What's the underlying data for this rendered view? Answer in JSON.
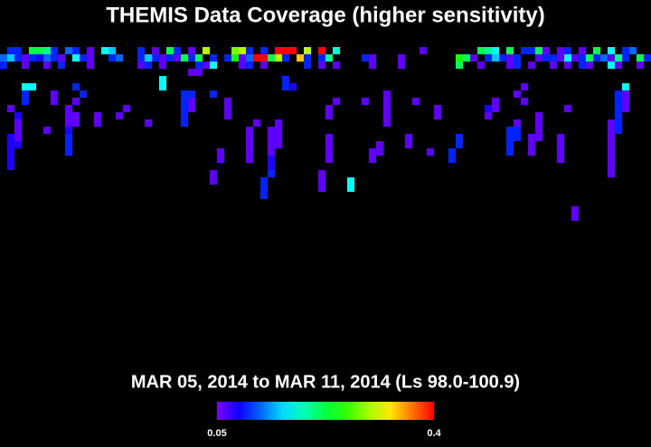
{
  "chart_data": {
    "type": "heatmap",
    "title": "THEMIS Data Coverage (higher sensitivity)",
    "subtitle": "MAR 05, 2014 to MAR 11, 2014 (Ls 98.0-100.9)",
    "colorbar": {
      "range": [
        0.05,
        0.4
      ]
    },
    "cells": [
      [
        1,
        6,
        0.1
      ],
      [
        2,
        6,
        0.1
      ],
      [
        4,
        6,
        0.22
      ],
      [
        5,
        6,
        0.22
      ],
      [
        6,
        6,
        0.2
      ],
      [
        7,
        6,
        0.1
      ],
      [
        9,
        6,
        0.12
      ],
      [
        10,
        6,
        0.1
      ],
      [
        12,
        6,
        0.06
      ],
      [
        14,
        6,
        0.17
      ],
      [
        15,
        6,
        0.15
      ],
      [
        19,
        6,
        0.1
      ],
      [
        21,
        6,
        0.06
      ],
      [
        23,
        6,
        0.22
      ],
      [
        24,
        6,
        0.1
      ],
      [
        26,
        6,
        0.06
      ],
      [
        28,
        6,
        0.3
      ],
      [
        32,
        6,
        0.28
      ],
      [
        33,
        6,
        0.3
      ],
      [
        34,
        6,
        0.1
      ],
      [
        36,
        6,
        0.1
      ],
      [
        38,
        6,
        0.4
      ],
      [
        39,
        6,
        0.4
      ],
      [
        40,
        6,
        0.4
      ],
      [
        42,
        6,
        0.3
      ],
      [
        44,
        6,
        0.4
      ],
      [
        46,
        6,
        0.18
      ],
      [
        58,
        6,
        0.06
      ],
      [
        66,
        6,
        0.22
      ],
      [
        67,
        6,
        0.2
      ],
      [
        68,
        6,
        0.17
      ],
      [
        70,
        6,
        0.22
      ],
      [
        72,
        6,
        0.1
      ],
      [
        73,
        6,
        0.1
      ],
      [
        74,
        6,
        0.22
      ],
      [
        75,
        6,
        0.06
      ],
      [
        77,
        6,
        0.06
      ],
      [
        78,
        6,
        0.1
      ],
      [
        80,
        6,
        0.06
      ],
      [
        82,
        6,
        0.22
      ],
      [
        84,
        6,
        0.17
      ],
      [
        86,
        6,
        0.1
      ],
      [
        87,
        6,
        0.12
      ],
      [
        0,
        7,
        0.12
      ],
      [
        1,
        7,
        0.15
      ],
      [
        2,
        7,
        0.1
      ],
      [
        3,
        7,
        0.06
      ],
      [
        4,
        7,
        0.1
      ],
      [
        5,
        7,
        0.08
      ],
      [
        6,
        7,
        0.12
      ],
      [
        7,
        7,
        0.1
      ],
      [
        8,
        7,
        0.06
      ],
      [
        10,
        7,
        0.17
      ],
      [
        11,
        7,
        0.1
      ],
      [
        12,
        7,
        0.06
      ],
      [
        15,
        7,
        0.1
      ],
      [
        16,
        7,
        0.12
      ],
      [
        19,
        7,
        0.1
      ],
      [
        20,
        7,
        0.15
      ],
      [
        21,
        7,
        0.1
      ],
      [
        22,
        7,
        0.06
      ],
      [
        23,
        7,
        0.1
      ],
      [
        24,
        7,
        0.06
      ],
      [
        25,
        7,
        0.22
      ],
      [
        26,
        7,
        0.1
      ],
      [
        27,
        7,
        0.22
      ],
      [
        29,
        7,
        0.1
      ],
      [
        31,
        7,
        0.1
      ],
      [
        32,
        7,
        0.25
      ],
      [
        33,
        7,
        0.06
      ],
      [
        34,
        7,
        0.12
      ],
      [
        35,
        7,
        0.4
      ],
      [
        36,
        7,
        0.4
      ],
      [
        37,
        7,
        0.22
      ],
      [
        38,
        7,
        0.3
      ],
      [
        39,
        7,
        0.1
      ],
      [
        41,
        7,
        0.34
      ],
      [
        42,
        7,
        0.1
      ],
      [
        44,
        7,
        0.1
      ],
      [
        45,
        7,
        0.2
      ],
      [
        50,
        7,
        0.1
      ],
      [
        51,
        7,
        0.06
      ],
      [
        55,
        7,
        0.06
      ],
      [
        63,
        7,
        0.25
      ],
      [
        64,
        7,
        0.22
      ],
      [
        65,
        7,
        0.06
      ],
      [
        67,
        7,
        0.1
      ],
      [
        68,
        7,
        0.15
      ],
      [
        69,
        7,
        0.1
      ],
      [
        70,
        7,
        0.06
      ],
      [
        71,
        7,
        0.1
      ],
      [
        74,
        7,
        0.06
      ],
      [
        75,
        7,
        0.1
      ],
      [
        76,
        7,
        0.1
      ],
      [
        77,
        7,
        0.06
      ],
      [
        78,
        7,
        0.17
      ],
      [
        79,
        7,
        0.06
      ],
      [
        80,
        7,
        0.1
      ],
      [
        81,
        7,
        0.22
      ],
      [
        82,
        7,
        0.1
      ],
      [
        83,
        7,
        0.12
      ],
      [
        84,
        7,
        0.06
      ],
      [
        85,
        7,
        0.2
      ],
      [
        86,
        7,
        0.1
      ],
      [
        88,
        7,
        0.22
      ],
      [
        89,
        7,
        0.1
      ],
      [
        0,
        8,
        0.1
      ],
      [
        3,
        8,
        0.06
      ],
      [
        6,
        8,
        0.06
      ],
      [
        8,
        8,
        0.1
      ],
      [
        12,
        8,
        0.06
      ],
      [
        19,
        8,
        0.06
      ],
      [
        20,
        8,
        0.1
      ],
      [
        22,
        8,
        0.06
      ],
      [
        27,
        8,
        0.1
      ],
      [
        28,
        8,
        0.06
      ],
      [
        29,
        8,
        0.17
      ],
      [
        33,
        8,
        0.06
      ],
      [
        34,
        8,
        0.1
      ],
      [
        36,
        8,
        0.06
      ],
      [
        42,
        8,
        0.1
      ],
      [
        44,
        8,
        0.06
      ],
      [
        46,
        8,
        0.06
      ],
      [
        51,
        8,
        0.06
      ],
      [
        55,
        8,
        0.06
      ],
      [
        63,
        8,
        0.22
      ],
      [
        66,
        8,
        0.06
      ],
      [
        70,
        8,
        0.06
      ],
      [
        71,
        8,
        0.1
      ],
      [
        73,
        8,
        0.06
      ],
      [
        76,
        8,
        0.06
      ],
      [
        78,
        8,
        0.06
      ],
      [
        80,
        8,
        0.1
      ],
      [
        81,
        8,
        0.06
      ],
      [
        84,
        8,
        0.17
      ],
      [
        85,
        8,
        0.06
      ],
      [
        88,
        8,
        0.06
      ],
      [
        26,
        9,
        0.06
      ],
      [
        27,
        9,
        0.06
      ],
      [
        22,
        10,
        0.17
      ],
      [
        39,
        10,
        0.1
      ],
      [
        3,
        11,
        0.17
      ],
      [
        4,
        11,
        0.17
      ],
      [
        10,
        11,
        0.1
      ],
      [
        22,
        11,
        0.17
      ],
      [
        39,
        11,
        0.1
      ],
      [
        40,
        11,
        0.08
      ],
      [
        72,
        11,
        0.06
      ],
      [
        86,
        11,
        0.17
      ],
      [
        3,
        12,
        0.1
      ],
      [
        7,
        12,
        0.06
      ],
      [
        11,
        12,
        0.1
      ],
      [
        25,
        12,
        0.1
      ],
      [
        26,
        12,
        0.1
      ],
      [
        29,
        12,
        0.1
      ],
      [
        53,
        12,
        0.06
      ],
      [
        71,
        12,
        0.06
      ],
      [
        85,
        12,
        0.1
      ],
      [
        86,
        12,
        0.06
      ],
      [
        3,
        13,
        0.1
      ],
      [
        7,
        13,
        0.06
      ],
      [
        10,
        13,
        0.06
      ],
      [
        25,
        13,
        0.1
      ],
      [
        26,
        13,
        0.06
      ],
      [
        31,
        13,
        0.06
      ],
      [
        46,
        13,
        0.06
      ],
      [
        50,
        13,
        0.06
      ],
      [
        53,
        13,
        0.06
      ],
      [
        57,
        13,
        0.06
      ],
      [
        68,
        13,
        0.06
      ],
      [
        72,
        13,
        0.06
      ],
      [
        85,
        13,
        0.1
      ],
      [
        86,
        13,
        0.06
      ],
      [
        1,
        14,
        0.06
      ],
      [
        9,
        14,
        0.06
      ],
      [
        17,
        14,
        0.06
      ],
      [
        25,
        14,
        0.1
      ],
      [
        26,
        14,
        0.06
      ],
      [
        31,
        14,
        0.06
      ],
      [
        45,
        14,
        0.06
      ],
      [
        53,
        14,
        0.06
      ],
      [
        60,
        14,
        0.06
      ],
      [
        67,
        14,
        0.08
      ],
      [
        68,
        14,
        0.06
      ],
      [
        78,
        14,
        0.06
      ],
      [
        85,
        14,
        0.1
      ],
      [
        86,
        14,
        0.06
      ],
      [
        2,
        15,
        0.08
      ],
      [
        9,
        15,
        0.06
      ],
      [
        10,
        15,
        0.06
      ],
      [
        13,
        15,
        0.06
      ],
      [
        16,
        15,
        0.06
      ],
      [
        25,
        15,
        0.1
      ],
      [
        31,
        15,
        0.06
      ],
      [
        45,
        15,
        0.06
      ],
      [
        53,
        15,
        0.06
      ],
      [
        60,
        15,
        0.06
      ],
      [
        67,
        15,
        0.06
      ],
      [
        74,
        15,
        0.06
      ],
      [
        85,
        15,
        0.1
      ],
      [
        2,
        16,
        0.06
      ],
      [
        9,
        16,
        0.06
      ],
      [
        10,
        16,
        0.06
      ],
      [
        13,
        16,
        0.06
      ],
      [
        20,
        16,
        0.06
      ],
      [
        25,
        16,
        0.1
      ],
      [
        35,
        16,
        0.06
      ],
      [
        38,
        16,
        0.06
      ],
      [
        53,
        16,
        0.06
      ],
      [
        71,
        16,
        0.06
      ],
      [
        74,
        16,
        0.06
      ],
      [
        84,
        16,
        0.06
      ],
      [
        85,
        16,
        0.1
      ],
      [
        2,
        17,
        0.06
      ],
      [
        6,
        17,
        0.06
      ],
      [
        9,
        17,
        0.08
      ],
      [
        34,
        17,
        0.06
      ],
      [
        37,
        17,
        0.06
      ],
      [
        38,
        17,
        0.06
      ],
      [
        70,
        17,
        0.1
      ],
      [
        71,
        17,
        0.1
      ],
      [
        74,
        17,
        0.06
      ],
      [
        84,
        17,
        0.06
      ],
      [
        85,
        17,
        0.1
      ],
      [
        1,
        18,
        0.08
      ],
      [
        2,
        18,
        0.06
      ],
      [
        9,
        18,
        0.1
      ],
      [
        34,
        18,
        0.06
      ],
      [
        37,
        18,
        0.06
      ],
      [
        38,
        18,
        0.06
      ],
      [
        45,
        18,
        0.06
      ],
      [
        56,
        18,
        0.06
      ],
      [
        63,
        18,
        0.1
      ],
      [
        70,
        18,
        0.1
      ],
      [
        71,
        18,
        0.1
      ],
      [
        73,
        18,
        0.06
      ],
      [
        74,
        18,
        0.06
      ],
      [
        77,
        18,
        0.06
      ],
      [
        84,
        18,
        0.06
      ],
      [
        1,
        19,
        0.08
      ],
      [
        2,
        19,
        0.08
      ],
      [
        9,
        19,
        0.1
      ],
      [
        34,
        19,
        0.06
      ],
      [
        37,
        19,
        0.06
      ],
      [
        38,
        19,
        0.06
      ],
      [
        45,
        19,
        0.06
      ],
      [
        52,
        19,
        0.06
      ],
      [
        56,
        19,
        0.06
      ],
      [
        63,
        19,
        0.1
      ],
      [
        70,
        19,
        0.1
      ],
      [
        73,
        19,
        0.06
      ],
      [
        77,
        19,
        0.06
      ],
      [
        84,
        19,
        0.06
      ],
      [
        1,
        20,
        0.08
      ],
      [
        9,
        20,
        0.1
      ],
      [
        30,
        20,
        0.06
      ],
      [
        34,
        20,
        0.06
      ],
      [
        37,
        20,
        0.06
      ],
      [
        45,
        20,
        0.06
      ],
      [
        51,
        20,
        0.06
      ],
      [
        52,
        20,
        0.06
      ],
      [
        59,
        20,
        0.06
      ],
      [
        62,
        20,
        0.1
      ],
      [
        70,
        20,
        0.1
      ],
      [
        73,
        20,
        0.06
      ],
      [
        77,
        20,
        0.06
      ],
      [
        84,
        20,
        0.06
      ],
      [
        1,
        21,
        0.08
      ],
      [
        30,
        21,
        0.06
      ],
      [
        34,
        21,
        0.06
      ],
      [
        37,
        21,
        0.08
      ],
      [
        45,
        21,
        0.06
      ],
      [
        51,
        21,
        0.06
      ],
      [
        62,
        21,
        0.1
      ],
      [
        77,
        21,
        0.06
      ],
      [
        84,
        21,
        0.06
      ],
      [
        1,
        22,
        0.08
      ],
      [
        37,
        22,
        0.08
      ],
      [
        84,
        22,
        0.06
      ],
      [
        29,
        23,
        0.06
      ],
      [
        37,
        23,
        0.1
      ],
      [
        44,
        23,
        0.06
      ],
      [
        84,
        23,
        0.06
      ],
      [
        29,
        24,
        0.06
      ],
      [
        36,
        24,
        0.1
      ],
      [
        44,
        24,
        0.06
      ],
      [
        48,
        24,
        0.17
      ],
      [
        36,
        25,
        0.1
      ],
      [
        44,
        25,
        0.06
      ],
      [
        48,
        25,
        0.17
      ],
      [
        36,
        26,
        0.1
      ],
      [
        79,
        28,
        0.06
      ],
      [
        79,
        29,
        0.06
      ]
    ]
  }
}
